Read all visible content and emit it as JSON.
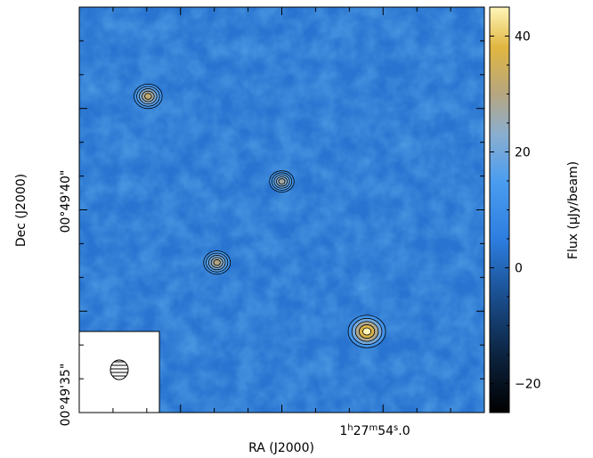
{
  "chart_data": {
    "type": "heatmap",
    "title": "",
    "xlabel": "RA (J2000)",
    "ylabel": "Dec (J2000)",
    "x_tick_labels": [
      {
        "label": "1h27m54.0s",
        "value": "1h27m54.0s"
      }
    ],
    "y_tick_labels": [
      {
        "label": "00°49'40\"",
        "value": 40
      },
      {
        "label": "00°49'35\"",
        "value": 35
      }
    ],
    "colorbar": {
      "label": "Flux (μJy/beam)",
      "range": [
        -25,
        45
      ],
      "ticks": [
        -20,
        0,
        20,
        40
      ],
      "colormap": [
        {
          "v": -25,
          "color": "#000000"
        },
        {
          "v": -15,
          "color": "#0c2440"
        },
        {
          "v": -5,
          "color": "#1a4e8e"
        },
        {
          "v": 5,
          "color": "#2d7ee0"
        },
        {
          "v": 15,
          "color": "#4b9df0"
        },
        {
          "v": 23,
          "color": "#8aaed0"
        },
        {
          "v": 30,
          "color": "#b6a680"
        },
        {
          "v": 38,
          "color": "#e0b640"
        },
        {
          "v": 45,
          "color": "#fff6b8"
        }
      ]
    },
    "background_level_uJy": 3,
    "sources": [
      {
        "id": "src-a",
        "x": 0.17,
        "y": 0.22,
        "peak": 32
      },
      {
        "id": "src-b",
        "x": 0.5,
        "y": 0.43,
        "peak": 27
      },
      {
        "id": "src-c",
        "x": 0.34,
        "y": 0.63,
        "peak": 30
      },
      {
        "id": "src-d",
        "x": 0.71,
        "y": 0.8,
        "peak": 45
      }
    ],
    "contour_levels": 5,
    "beam": {
      "shape": "ellipse",
      "fill": "hatched"
    }
  }
}
